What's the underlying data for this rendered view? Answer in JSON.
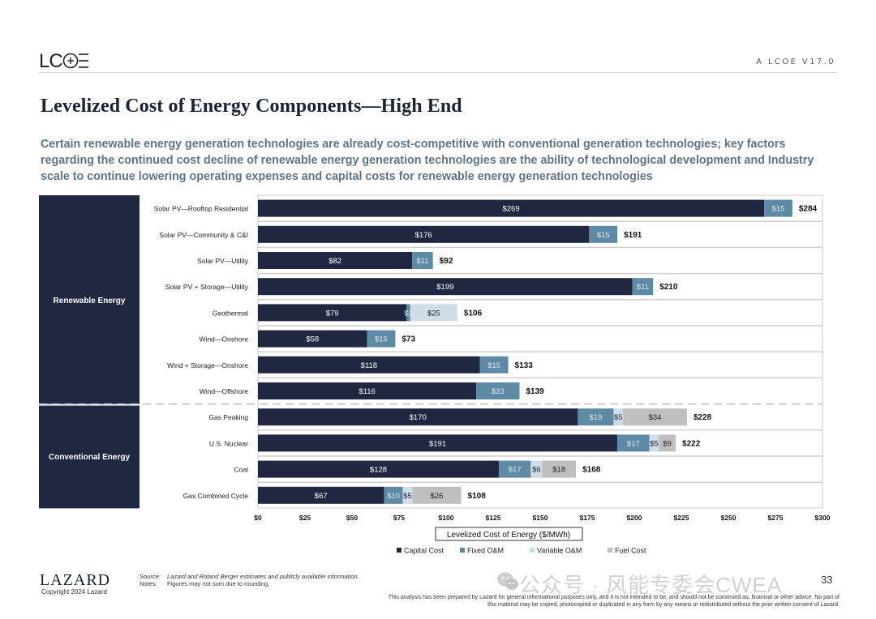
{
  "header": {
    "logo_text": "LCOE",
    "right_label": "A   LCOE V17.0"
  },
  "page_title": "Levelized Cost of Energy Components—High End",
  "subtitle": "Certain renewable energy generation technologies are already cost-competitive with conventional generation technologies; key factors regarding the continued cost decline of renewable energy generation technologies are the ability of technological development and Industry scale to continue lowering operating expenses and capital costs for renewable energy generation technologies",
  "colors": {
    "capital": "#1f2840",
    "fixed_om": "#5f8aa6",
    "variable_om": "#cfdde7",
    "fuel": "#bfbfbf",
    "group_panel": "#1f2840"
  },
  "chart_data": {
    "type": "bar",
    "orientation": "horizontal",
    "stacked": true,
    "title": "Levelized Cost of Energy Components—High End",
    "xlabel": "Levelized Cost of Energy ($/MWh)",
    "ylabel": "",
    "xlim": [
      0,
      300
    ],
    "x_ticks": [
      "$0",
      "$25",
      "$50",
      "$75",
      "$100",
      "$125",
      "$150",
      "$175",
      "$200",
      "$225",
      "$250",
      "$275",
      "$300"
    ],
    "x_tick_values": [
      0,
      25,
      50,
      75,
      100,
      125,
      150,
      175,
      200,
      225,
      250,
      275,
      300
    ],
    "grid": false,
    "legend_position": "bottom",
    "groups": [
      {
        "name": "Renewable Energy",
        "categories": [
          "Solar PV—Rooftop Residential",
          "Solar PV—Community & C&I",
          "Solar PV—Utility",
          "Solar PV + Storage—Utility",
          "Geothermal",
          "Wind—Onshore",
          "Wind + Storage—Onshore",
          "Wind—Offshore"
        ]
      },
      {
        "name": "Conventional Energy",
        "categories": [
          "Gas Peaking",
          "U.S. Nuclear",
          "Coal",
          "Gas Combined Cycle"
        ]
      }
    ],
    "categories": [
      "Solar PV—Rooftop Residential",
      "Solar PV—Community & C&I",
      "Solar PV—Utility",
      "Solar PV + Storage—Utility",
      "Geothermal",
      "Wind—Onshore",
      "Wind + Storage—Onshore",
      "Wind—Offshore",
      "Gas Peaking",
      "U.S. Nuclear",
      "Coal",
      "Gas Combined Cycle"
    ],
    "series": [
      {
        "name": "Capital Cost",
        "key": "capital",
        "values": [
          269,
          176,
          82,
          199,
          79,
          58,
          118,
          116,
          170,
          191,
          128,
          67
        ]
      },
      {
        "name": "Fixed O&M",
        "key": "fixed_om",
        "values": [
          15,
          15,
          11,
          11,
          2,
          15,
          15,
          23,
          19,
          17,
          17,
          10
        ]
      },
      {
        "name": "Variable O&M",
        "key": "variable_om",
        "values": [
          0,
          0,
          0,
          0,
          25,
          0,
          0,
          0,
          5,
          5,
          6,
          5
        ]
      },
      {
        "name": "Fuel Cost",
        "key": "fuel",
        "values": [
          0,
          0,
          0,
          0,
          0,
          0,
          0,
          0,
          34,
          9,
          18,
          26
        ]
      }
    ],
    "totals": [
      284,
      191,
      92,
      210,
      106,
      73,
      133,
      139,
      228,
      222,
      168,
      108
    ]
  },
  "legend": [
    {
      "label": "Capital Cost",
      "key": "capital"
    },
    {
      "label": "Fixed O&M",
      "key": "fixed_om"
    },
    {
      "label": "Variable O&M",
      "key": "variable_om"
    },
    {
      "label": "Fuel Cost",
      "key": "fuel"
    }
  ],
  "footer": {
    "logo_text": "LAZARD",
    "copyright": "Copyright 2024 Lazard",
    "source_label": "Source:",
    "source_text": "Lazard and Roland Berger estimates and publicly available information.",
    "notes_label": "Notes:",
    "notes_text": "Figures may not sum due to rounding.",
    "disclaimer": "This analysis has been prepared by Lazard for general informational purposes only, and it is not intended to be, and should not be construed as, financial or other advice. No part of this material may be copied, photocopied or duplicated in any form by any means or redistributed without the prior written consent of Lazard.",
    "page_number": "33",
    "watermark": "公众号 · 风能专委会CWEA"
  }
}
